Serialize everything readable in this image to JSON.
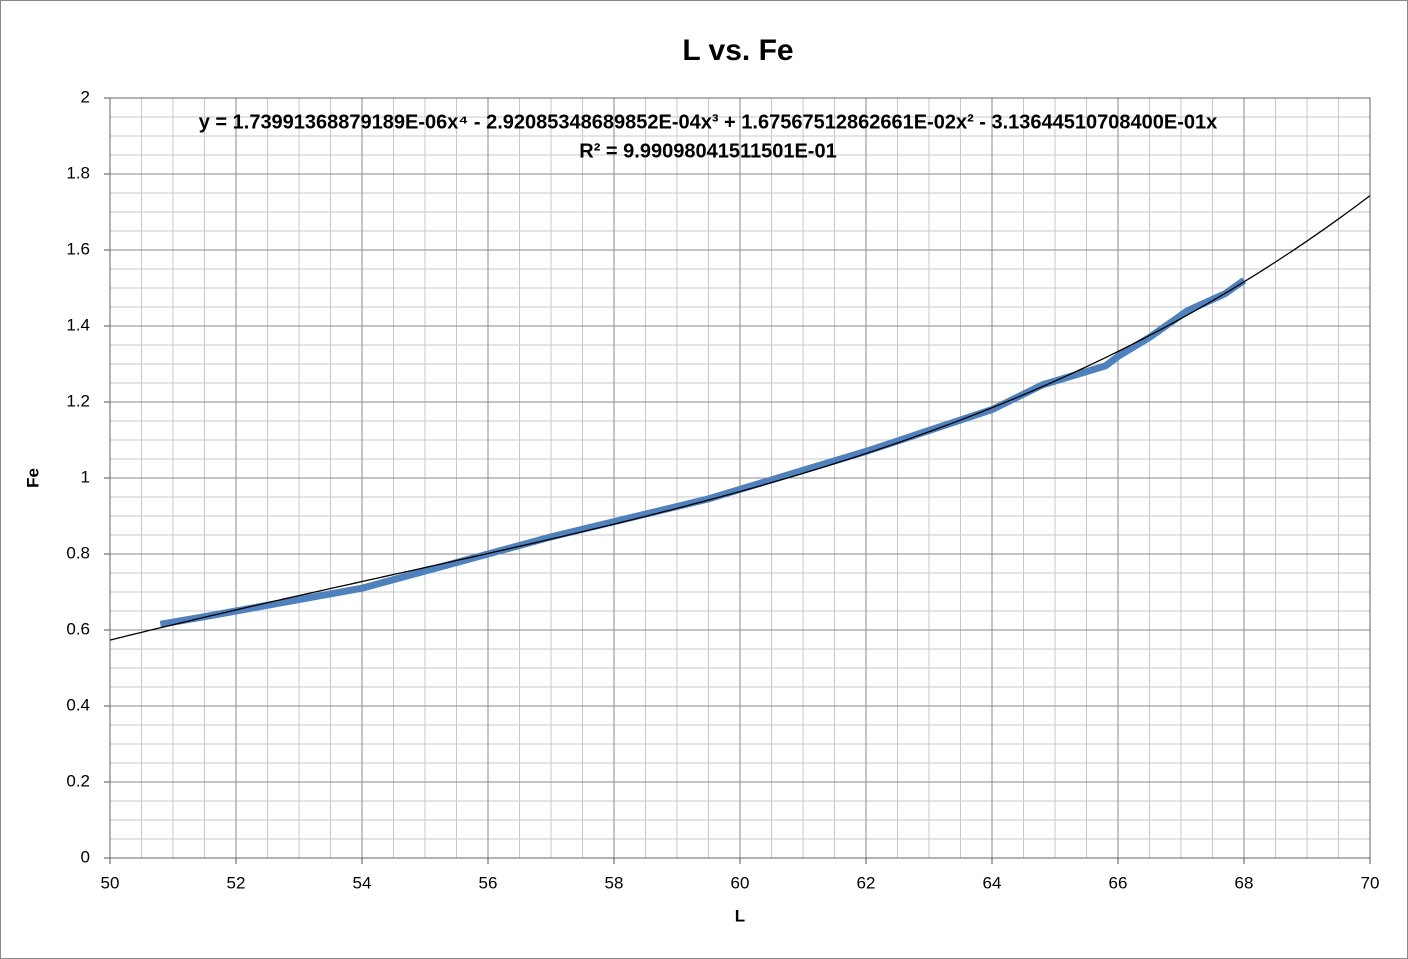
{
  "chart_data": {
    "type": "line",
    "title": "L vs. Fe",
    "x_label": "L",
    "y_label": "Fe",
    "xlim": [
      50,
      70
    ],
    "ylim": [
      0,
      2
    ],
    "xticks": [
      50,
      52,
      54,
      56,
      58,
      60,
      62,
      64,
      66,
      68,
      70
    ],
    "yticks": [
      0,
      0.2,
      0.4,
      0.6,
      0.8,
      1,
      1.2,
      1.4,
      1.6,
      1.8,
      2
    ],
    "grid": true,
    "minor_grid": {
      "x": 0.5,
      "y": 0.05
    },
    "series": [
      {
        "color": "#4f81bd",
        "x": [
          50.8,
          51.5,
          52,
          53,
          54,
          55,
          56,
          57,
          58,
          59,
          59.5,
          60,
          61,
          62,
          63,
          64,
          64.8,
          65.8,
          66,
          66.5,
          67.1,
          67.7,
          68
        ],
        "values": [
          0.615,
          0.635,
          0.65,
          0.68,
          0.71,
          0.755,
          0.8,
          0.845,
          0.885,
          0.925,
          0.945,
          0.97,
          1.02,
          1.07,
          1.125,
          1.18,
          1.245,
          1.295,
          1.32,
          1.37,
          1.44,
          1.485,
          1.52
        ]
      }
    ],
    "trendline": {
      "type": "polynomial",
      "color": "#000000",
      "equation": "y = 1.73991368879189E-06x⁴ - 2.92085348689852E-04x³ + 1.67567512862661E-02x² - 3.13644510708400E-01x",
      "r_squared": "R² = 9.99098041511501E-01",
      "coefficients": [
        1.73991368879189e-06,
        -0.000292085348689852,
        0.0167567512862661,
        -0.3136445107084,
        0
      ]
    }
  }
}
